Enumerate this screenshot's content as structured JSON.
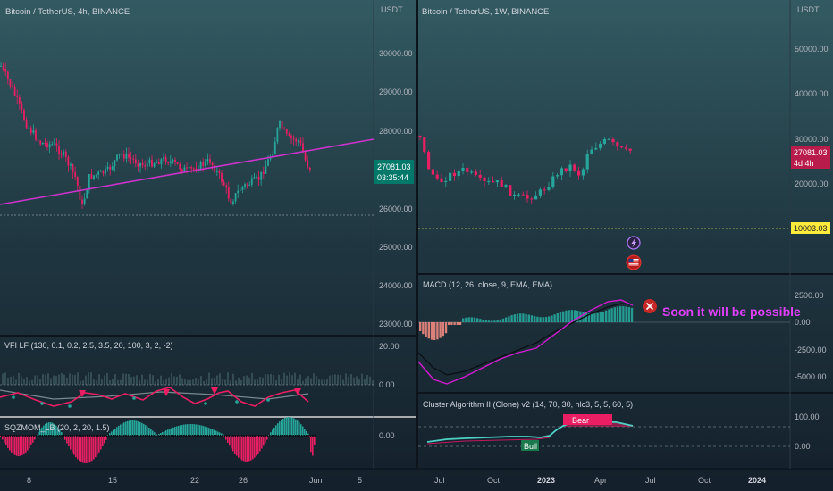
{
  "left_panel": {
    "title": "Bitcoin / TetherUS, 4h, BINANCE",
    "currency": "USDT",
    "price_ticks": [
      "30000.00",
      "29000.00",
      "28000.00",
      "26000.00",
      "25000.00",
      "24000.00",
      "23000.00"
    ],
    "price_label": "27081.03",
    "countdown_label": "03:35:44",
    "vfi": {
      "title": "VFI LF (130, 0.1, 0.2, 2.5, 3.5, 20, 100, 3, 2, -2)",
      "ticks": [
        "20.00",
        "0.00"
      ]
    },
    "sqzmom": {
      "title": "SQZMOM_LB (20, 2, 20, 1.5)",
      "ticks": [
        "0.00"
      ]
    },
    "x_ticks": [
      "8",
      "15",
      "22",
      "26",
      "Jun",
      "5"
    ]
  },
  "right_panel": {
    "title": "Bitcoin / TetherUS, 1W, BINANCE",
    "currency": "USDT",
    "price_ticks": [
      "50000.00",
      "40000.00",
      "30000.00",
      "20000.00"
    ],
    "price_label": "27081.03",
    "countdown_label": "4d 4h",
    "level_label": "10003.03",
    "macd": {
      "title": "MACD (12, 26, close, 9, EMA, EMA)",
      "ticks": [
        "2500.00",
        "0.00",
        "-2500.00",
        "-5000.00"
      ],
      "annotation": "Soon it will be possible"
    },
    "cluster": {
      "title": "Cluster Algorithm II (Clone) v2 (14, 70, 30, hlc3, 5, 5, 60, 5)",
      "ticks": [
        "100.00",
        "0.00"
      ],
      "bear_label": "Bear",
      "bull_label": "Bull"
    },
    "x_ticks": [
      "Jul",
      "Oct",
      "2023",
      "Apr",
      "Jul",
      "Oct",
      "2024"
    ]
  },
  "colors": {
    "up": "#26a69a",
    "down": "#e91e63",
    "trendline": "#cc33cc",
    "price_label_bg": "#00796b",
    "price_label_down_bg": "#b71c4a",
    "level_label_bg": "#ffeb3b",
    "annotation": "#e040fb"
  }
}
